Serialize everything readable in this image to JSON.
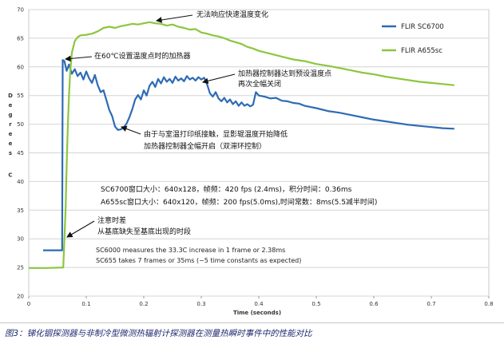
{
  "chart_data": {
    "type": "line",
    "title": "",
    "xlabel": "Time (seconds)",
    "ylabel": "Degrees C",
    "xlim": [
      0,
      0.8
    ],
    "ylim": [
      20,
      70
    ],
    "x_ticks": [
      "0",
      "0.1",
      "0.2",
      "0.3",
      "0.4",
      "0.5",
      "0.6",
      "0.7",
      "0.8"
    ],
    "y_ticks": [
      "20",
      "25",
      "30",
      "35",
      "40",
      "45",
      "50",
      "55",
      "60",
      "65",
      "70"
    ],
    "grid": true,
    "legend_position": "right",
    "series": [
      {
        "name": "FLIR SC6700",
        "color": "#2e6bb5",
        "points": [
          [
            0.025,
            28.0
          ],
          [
            0.058,
            28.0
          ],
          [
            0.059,
            61.2
          ],
          [
            0.062,
            61.0
          ],
          [
            0.066,
            59.3
          ],
          [
            0.07,
            60.4
          ],
          [
            0.075,
            58.8
          ],
          [
            0.08,
            59.6
          ],
          [
            0.085,
            58.4
          ],
          [
            0.09,
            59.0
          ],
          [
            0.095,
            57.8
          ],
          [
            0.1,
            59.2
          ],
          [
            0.105,
            58.0
          ],
          [
            0.11,
            57.2
          ],
          [
            0.115,
            58.6
          ],
          [
            0.12,
            56.8
          ],
          [
            0.125,
            55.6
          ],
          [
            0.13,
            55.9
          ],
          [
            0.135,
            54.2
          ],
          [
            0.14,
            52.5
          ],
          [
            0.145,
            51.4
          ],
          [
            0.15,
            49.6
          ],
          [
            0.155,
            49.0
          ],
          [
            0.16,
            49.1
          ],
          [
            0.165,
            49.4
          ],
          [
            0.17,
            50.1
          ],
          [
            0.175,
            51.2
          ],
          [
            0.18,
            52.6
          ],
          [
            0.185,
            54.3
          ],
          [
            0.19,
            55.1
          ],
          [
            0.195,
            54.3
          ],
          [
            0.2,
            55.9
          ],
          [
            0.205,
            55.0
          ],
          [
            0.21,
            56.7
          ],
          [
            0.215,
            57.4
          ],
          [
            0.22,
            56.5
          ],
          [
            0.225,
            57.9
          ],
          [
            0.23,
            57.1
          ],
          [
            0.235,
            58.2
          ],
          [
            0.24,
            57.4
          ],
          [
            0.245,
            57.9
          ],
          [
            0.25,
            57.2
          ],
          [
            0.255,
            58.3
          ],
          [
            0.26,
            57.6
          ],
          [
            0.265,
            58.0
          ],
          [
            0.27,
            57.5
          ],
          [
            0.275,
            58.4
          ],
          [
            0.28,
            57.8
          ],
          [
            0.285,
            58.1
          ],
          [
            0.29,
            57.6
          ],
          [
            0.295,
            58.2
          ],
          [
            0.3,
            57.8
          ],
          [
            0.305,
            58.1
          ],
          [
            0.31,
            57.0
          ],
          [
            0.315,
            55.4
          ],
          [
            0.32,
            54.8
          ],
          [
            0.325,
            55.6
          ],
          [
            0.33,
            54.5
          ],
          [
            0.335,
            54.0
          ],
          [
            0.34,
            54.6
          ],
          [
            0.345,
            53.8
          ],
          [
            0.35,
            54.3
          ],
          [
            0.355,
            53.5
          ],
          [
            0.36,
            54.0
          ],
          [
            0.365,
            53.2
          ],
          [
            0.37,
            53.8
          ],
          [
            0.375,
            53.2
          ],
          [
            0.38,
            53.5
          ],
          [
            0.385,
            53.1
          ],
          [
            0.39,
            53.4
          ],
          [
            0.395,
            55.6
          ],
          [
            0.4,
            55.0
          ],
          [
            0.41,
            54.8
          ],
          [
            0.42,
            54.5
          ],
          [
            0.43,
            54.6
          ],
          [
            0.44,
            54.1
          ],
          [
            0.45,
            54.0
          ],
          [
            0.46,
            53.7
          ],
          [
            0.47,
            53.6
          ],
          [
            0.48,
            53.2
          ],
          [
            0.49,
            53.0
          ],
          [
            0.5,
            52.8
          ],
          [
            0.52,
            52.3
          ],
          [
            0.54,
            52.0
          ],
          [
            0.56,
            51.6
          ],
          [
            0.58,
            51.2
          ],
          [
            0.6,
            50.8
          ],
          [
            0.62,
            50.5
          ],
          [
            0.64,
            50.2
          ],
          [
            0.66,
            49.9
          ],
          [
            0.68,
            49.7
          ],
          [
            0.7,
            49.5
          ],
          [
            0.72,
            49.3
          ],
          [
            0.74,
            49.2
          ]
        ]
      },
      {
        "name": "FLIR A655sc",
        "color": "#8cc63e",
        "points": [
          [
            0.0,
            24.9
          ],
          [
            0.03,
            24.9
          ],
          [
            0.06,
            25.0
          ],
          [
            0.064,
            35.0
          ],
          [
            0.066,
            43.0
          ],
          [
            0.068,
            50.0
          ],
          [
            0.07,
            55.0
          ],
          [
            0.072,
            59.0
          ],
          [
            0.075,
            62.5
          ],
          [
            0.08,
            64.5
          ],
          [
            0.085,
            65.2
          ],
          [
            0.09,
            65.5
          ],
          [
            0.1,
            65.6
          ],
          [
            0.11,
            65.8
          ],
          [
            0.12,
            66.2
          ],
          [
            0.13,
            66.8
          ],
          [
            0.14,
            67.0
          ],
          [
            0.15,
            66.8
          ],
          [
            0.16,
            67.1
          ],
          [
            0.17,
            67.3
          ],
          [
            0.18,
            67.5
          ],
          [
            0.19,
            67.4
          ],
          [
            0.2,
            67.6
          ],
          [
            0.21,
            67.8
          ],
          [
            0.22,
            67.6
          ],
          [
            0.23,
            67.5
          ],
          [
            0.24,
            67.2
          ],
          [
            0.25,
            67.4
          ],
          [
            0.26,
            67.0
          ],
          [
            0.27,
            66.8
          ],
          [
            0.28,
            66.5
          ],
          [
            0.29,
            66.6
          ],
          [
            0.3,
            66.0
          ],
          [
            0.31,
            65.8
          ],
          [
            0.32,
            65.5
          ],
          [
            0.33,
            65.3
          ],
          [
            0.34,
            65.0
          ],
          [
            0.35,
            64.6
          ],
          [
            0.36,
            64.3
          ],
          [
            0.37,
            64.0
          ],
          [
            0.38,
            63.5
          ],
          [
            0.39,
            63.2
          ],
          [
            0.4,
            62.8
          ],
          [
            0.42,
            62.3
          ],
          [
            0.44,
            61.8
          ],
          [
            0.46,
            61.3
          ],
          [
            0.48,
            61.0
          ],
          [
            0.5,
            60.5
          ],
          [
            0.52,
            60.2
          ],
          [
            0.54,
            59.8
          ],
          [
            0.56,
            59.4
          ],
          [
            0.58,
            59.0
          ],
          [
            0.6,
            58.7
          ],
          [
            0.62,
            58.3
          ],
          [
            0.64,
            58.0
          ],
          [
            0.66,
            57.7
          ],
          [
            0.68,
            57.4
          ],
          [
            0.7,
            57.2
          ],
          [
            0.72,
            57.0
          ],
          [
            0.74,
            56.8
          ]
        ]
      }
    ],
    "annotations": [
      {
        "lines": [
          "无法响应快速温度变化"
        ],
        "cls": "note"
      },
      {
        "lines": [
          "在60℃设置温度点时的加热器"
        ],
        "cls": "note"
      },
      {
        "lines": [
          "加热器控制器达到预设温度点",
          "再次全幅关闭"
        ],
        "cls": "note"
      },
      {
        "lines": [
          "由于与室温打印纸接触，显影辊温度开始降低",
          "加热器控制器全幅开启（双滞环控制）"
        ],
        "cls": "note"
      },
      {
        "lines": [
          "SC6700窗口大小：640x128，帧频：420 fps (2.4ms)，积分时间：0.36ms",
          "A655sc窗口大小：640x120，帧频：200 fps(5.0ms),时间常数：8ms(5.5减半时间)"
        ],
        "cls": "note"
      },
      {
        "lines": [
          "注意时差",
          "从基底缺失至基底出现的时段"
        ],
        "cls": "note"
      },
      {
        "lines": [
          "SC6000 measures the 33.3C increase in 1 frame or 2.38ms",
          "SC655 takes 7 frames or 35ms (~5 time constants as expected)"
        ],
        "cls": "note-sm"
      }
    ]
  },
  "caption": "图3：锑化铟探测器与非制冷型微测热辐射计探测器在测量热瞬时事件中的性能对比"
}
